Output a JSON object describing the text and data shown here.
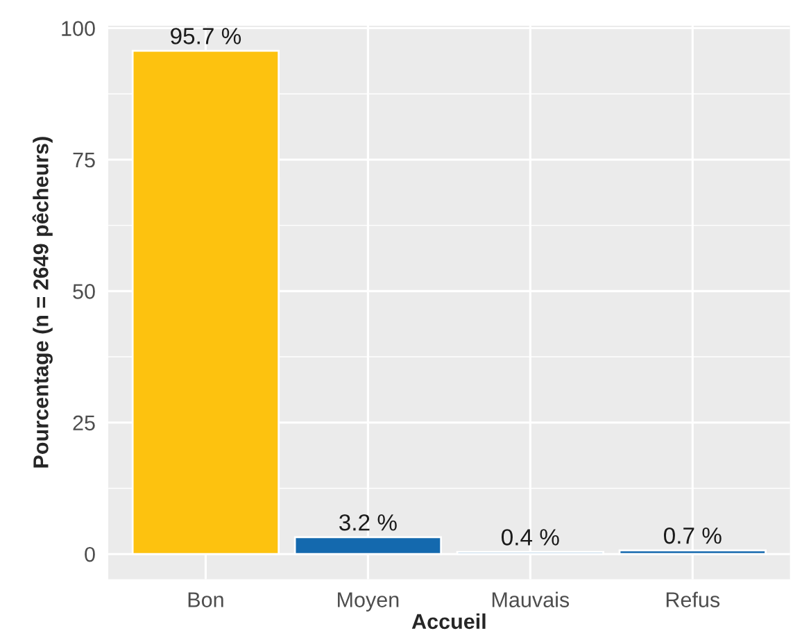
{
  "chart_data": {
    "type": "bar",
    "categories": [
      "Bon",
      "Moyen",
      "Mauvais",
      "Refus"
    ],
    "values": [
      95.7,
      3.2,
      0.4,
      0.7
    ],
    "value_labels": [
      "95.7 %",
      "3.2 %",
      "0.4 %",
      "0.7 %"
    ],
    "colors": [
      "#fdc20f",
      "#1469ae",
      "#1469ae",
      "#1469ae"
    ],
    "xlabel": "Accueil",
    "ylabel": "Pourcentage (n = 2649 pêcheurs)",
    "ylim": [
      -4.785,
      100.485
    ],
    "yticks": [
      0,
      25,
      50,
      75,
      100
    ],
    "grid": true
  }
}
